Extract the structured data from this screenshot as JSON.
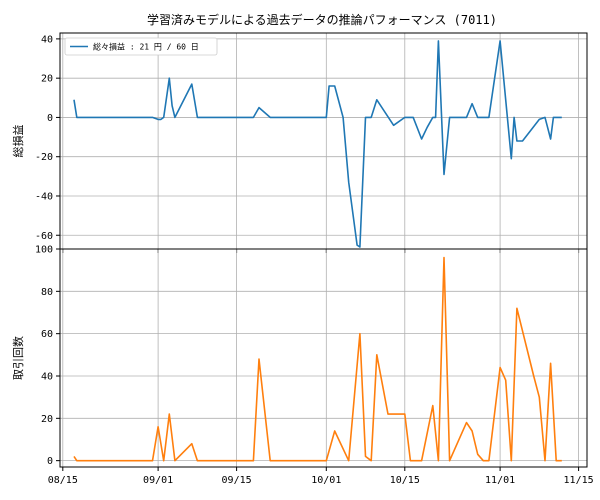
{
  "chart_data": {
    "title": "学習済みモデルによる過去データの推論パフォーマンス (7011)",
    "type": "line",
    "x_ticks": [
      "08/15",
      "09/01",
      "09/15",
      "10/01",
      "10/15",
      "11/01",
      "11/15"
    ],
    "x_tick_days": [
      0,
      17,
      31,
      47,
      61,
      78,
      92
    ],
    "xlim_days": [
      -0.5,
      93.5
    ],
    "grid": true,
    "panels": [
      {
        "ylabel": "総損益",
        "ylim": [
          -67,
          43
        ],
        "yticks": [
          40,
          20,
          0,
          -20,
          -40,
          -60
        ],
        "color": "#1f77b4",
        "legend": {
          "label": "総々損益 : 21 円 / 60 日",
          "placement": "top-left"
        },
        "series": {
          "x_days": [
            2,
            2.5,
            4,
            6,
            9,
            16,
            17,
            17.5,
            18,
            19,
            19.5,
            20,
            23,
            24,
            26,
            30,
            34,
            35,
            37,
            42,
            47,
            47.5,
            48.5,
            50,
            51,
            52.5,
            53,
            54,
            55,
            56,
            59,
            61,
            62,
            62.5,
            64,
            65,
            66,
            66.5,
            67,
            68,
            69,
            72,
            73,
            74,
            75,
            76,
            78,
            80,
            80.5,
            81,
            82,
            85,
            86,
            87,
            87.5,
            88.5,
            89
          ],
          "y": [
            9,
            0,
            0,
            0,
            0,
            0,
            -1,
            -1,
            0,
            20,
            6,
            0,
            17,
            0,
            0,
            0,
            0,
            5,
            0,
            0,
            0,
            16,
            16,
            0,
            -33,
            -65,
            -66,
            0,
            0,
            9,
            -4,
            0,
            0,
            0,
            -11,
            -5,
            0,
            0,
            39,
            -29,
            0,
            0,
            7,
            0,
            0,
            0,
            39,
            -21,
            0,
            -12,
            -12,
            -1,
            0,
            -11,
            0,
            0,
            0
          ]
        }
      },
      {
        "ylabel": "取引回数",
        "ylim": [
          -3,
          100
        ],
        "yticks": [
          100,
          80,
          60,
          40,
          20,
          0
        ],
        "color": "#ff7f0e",
        "series": {
          "x_days": [
            2,
            2.5,
            5,
            9,
            16,
            17,
            18,
            19,
            20,
            23,
            24,
            30,
            34,
            35,
            37,
            42,
            47,
            48.5,
            51,
            53,
            54,
            55,
            56,
            58,
            59,
            61,
            62,
            64,
            66,
            67,
            68,
            69,
            72,
            73,
            74,
            75,
            76,
            78,
            79,
            80,
            81,
            84,
            85,
            86,
            87,
            88,
            89
          ],
          "y": [
            2,
            0,
            0,
            0,
            0,
            16,
            0,
            22,
            0,
            8,
            0,
            0,
            0,
            48,
            0,
            0,
            0,
            14,
            0,
            60,
            2,
            0,
            50,
            22,
            22,
            22,
            0,
            0,
            26,
            0,
            96,
            0,
            18,
            14,
            3,
            0,
            0,
            44,
            38,
            0,
            72,
            40,
            30,
            0,
            46,
            0,
            0
          ]
        }
      }
    ]
  }
}
